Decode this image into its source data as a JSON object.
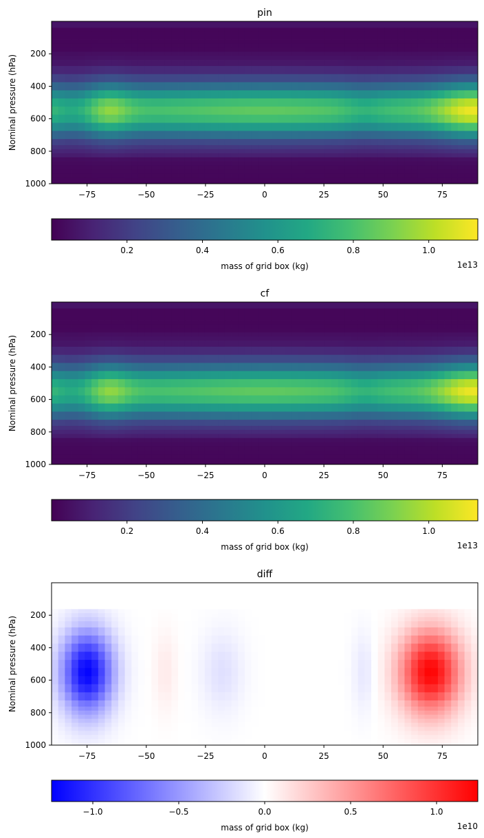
{
  "chart_data": [
    {
      "type": "heatmap",
      "title": "pin",
      "ylabel": "Nominal pressure (hPa)",
      "xlabel": "",
      "xlim": [
        -90,
        90
      ],
      "ylim": [
        1000,
        0
      ],
      "xticks": [
        -75,
        -50,
        -25,
        0,
        25,
        50,
        75
      ],
      "xtick_labels": [
        "−75",
        "−50",
        "−25",
        "0",
        "25",
        "50",
        "75"
      ],
      "yticks": [
        200,
        400,
        600,
        800,
        1000
      ],
      "ytick_labels": [
        "200",
        "400",
        "600",
        "800",
        "1000"
      ],
      "colormap": "viridis",
      "zlim": [
        0,
        1.13
      ],
      "colorbar": {
        "label": "mass of grid box (kg)",
        "ticks": [
          0.2,
          0.4,
          0.6,
          0.8,
          1.0
        ],
        "tick_labels": [
          "0.2",
          "0.4",
          "0.6",
          "0.8",
          "1.0"
        ],
        "offset_text": "1e13"
      },
      "levels_hPa": [
        10,
        20,
        30,
        50,
        70,
        100,
        125,
        150,
        175,
        200,
        225,
        250,
        300,
        350,
        400,
        450,
        500,
        550,
        600,
        650,
        700,
        750,
        775,
        800,
        825,
        850,
        875,
        900,
        925,
        950,
        975,
        1000
      ],
      "approx_peak_value": 1.13,
      "approx_peak_location": {
        "latitude": 88,
        "pressure_hPa": 550
      }
    },
    {
      "type": "heatmap",
      "title": "cf",
      "ylabel": "Nominal pressure (hPa)",
      "xlabel": "",
      "xlim": [
        -90,
        90
      ],
      "ylim": [
        1000,
        0
      ],
      "xticks": [
        -75,
        -50,
        -25,
        0,
        25,
        50,
        75
      ],
      "xtick_labels": [
        "−75",
        "−50",
        "−25",
        "0",
        "25",
        "50",
        "75"
      ],
      "yticks": [
        200,
        400,
        600,
        800,
        1000
      ],
      "ytick_labels": [
        "200",
        "400",
        "600",
        "800",
        "1000"
      ],
      "colormap": "viridis",
      "zlim": [
        0,
        1.13
      ],
      "colorbar": {
        "label": "mass of grid box (kg)",
        "ticks": [
          0.2,
          0.4,
          0.6,
          0.8,
          1.0
        ],
        "tick_labels": [
          "0.2",
          "0.4",
          "0.6",
          "0.8",
          "1.0"
        ],
        "offset_text": "1e13"
      },
      "levels_hPa": [
        10,
        20,
        30,
        50,
        70,
        100,
        125,
        150,
        175,
        200,
        225,
        250,
        300,
        350,
        400,
        450,
        500,
        550,
        600,
        650,
        700,
        750,
        775,
        800,
        825,
        850,
        875,
        900,
        925,
        950,
        975,
        1000
      ],
      "approx_peak_value": 1.13,
      "approx_peak_location": {
        "latitude": 88,
        "pressure_hPa": 550
      }
    },
    {
      "type": "heatmap",
      "title": "diff",
      "ylabel": "Nominal pressure (hPa)",
      "xlabel": "",
      "xlim": [
        -90,
        90
      ],
      "ylim": [
        1000,
        0
      ],
      "xticks": [
        -75,
        -50,
        -25,
        0,
        25,
        50,
        75
      ],
      "xtick_labels": [
        "−75",
        "−50",
        "−25",
        "0",
        "25",
        "50",
        "75"
      ],
      "yticks": [
        200,
        400,
        600,
        800,
        1000
      ],
      "ytick_labels": [
        "200",
        "400",
        "600",
        "800",
        "1000"
      ],
      "colormap": "bwr",
      "zlim": [
        -1.24,
        1.24
      ],
      "colorbar": {
        "label": "mass of grid box (kg)",
        "ticks": [
          -1.0,
          -0.5,
          0.0,
          0.5,
          1.0
        ],
        "tick_labels": [
          "−1.0",
          "−0.5",
          "0.0",
          "0.5",
          "1.0"
        ],
        "offset_text": "1e10"
      },
      "features": [
        {
          "sign": "negative",
          "latitude_center": -75,
          "pressure_center_hPa": 550,
          "approx_value": -1.2
        },
        {
          "sign": "positive",
          "latitude_center": 70,
          "pressure_center_hPa": 550,
          "approx_value": 1.2
        },
        {
          "sign": "positive",
          "latitude_center": -42,
          "pressure_center_hPa": 550,
          "approx_value": 0.1
        },
        {
          "sign": "negative",
          "latitude_center": -18,
          "pressure_center_hPa": 550,
          "approx_value": -0.15
        },
        {
          "sign": "negative",
          "latitude_center": 42,
          "pressure_center_hPa": 600,
          "approx_value": -0.12
        }
      ],
      "zero_above_hPa": 175
    }
  ]
}
